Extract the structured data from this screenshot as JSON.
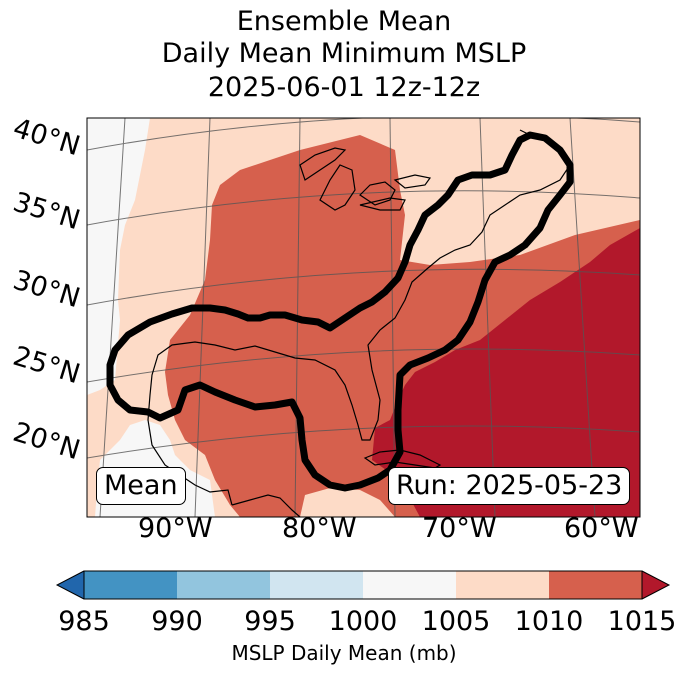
{
  "title": {
    "line1": "Ensemble Mean",
    "line2": "Daily Mean Minimum MSLP",
    "line3": "2025-06-01 12z-12z"
  },
  "map": {
    "latitude_labels": [
      "40°N",
      "35°N",
      "30°N",
      "25°N",
      "20°N"
    ],
    "longitude_labels": [
      "90°W",
      "80°W",
      "70°W",
      "60°W"
    ],
    "legend_badge": "Mean",
    "run_badge": "Run: 2025-05-23",
    "field": {
      "variable": "MSLP daily mean",
      "units": "mb",
      "regions": [
        {
          "category": "1000-1005",
          "area": "far western Gulf coast / Texas and northwest corner"
        },
        {
          "category": "1005-1010",
          "area": "band around 1010 region, New England, western Gulf, Cuba"
        },
        {
          "category": "1010-1015",
          "area": "central and eastern U.S., Gulf of Mexico, coastal Atlantic"
        },
        {
          "category": ">1015",
          "area": "western Atlantic southeast of the coast"
        }
      ],
      "contour": "ensemble mean outline around Gulf coast, Florida and U.S. East Coast"
    }
  },
  "colorbar": {
    "ticks": [
      "985",
      "990",
      "995",
      "1000",
      "1005",
      "1010",
      "1015"
    ],
    "colors": [
      "#2166ac",
      "#4393c3",
      "#92c5de",
      "#d1e5f0",
      "#f7f7f7",
      "#fddbc7",
      "#d6604d",
      "#b2182b"
    ],
    "label": "MSLP Daily Mean (mb)"
  }
}
